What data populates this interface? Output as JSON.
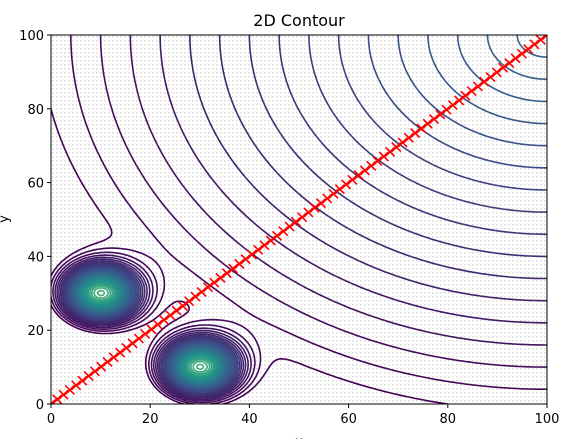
{
  "chart_data": {
    "type": "contour",
    "title": "2D Contour",
    "xlabel": "x",
    "ylabel": "y",
    "xlim": [
      0,
      100
    ],
    "ylim": [
      0,
      100
    ],
    "xticks": [
      0,
      20,
      40,
      60,
      80,
      100
    ],
    "yticks": [
      0,
      20,
      40,
      60,
      80,
      100
    ],
    "colormap": "viridis",
    "sample_grid": "dense dotted point grid over the full domain",
    "wells": [
      {
        "x": 10,
        "y": 30
      },
      {
        "x": 30,
        "y": 10
      }
    ],
    "path": {
      "color": "#ff0000",
      "marker": "x",
      "start": [
        0,
        0
      ],
      "end": [
        100,
        100
      ],
      "num_points": 80
    },
    "grid": false,
    "legend": "none"
  }
}
